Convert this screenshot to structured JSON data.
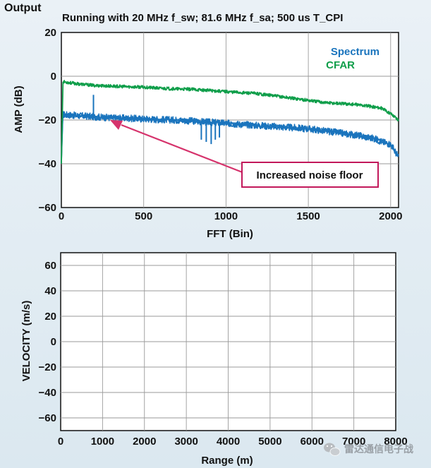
{
  "window_label": "Output",
  "chart_data": [
    {
      "type": "line",
      "title": "Running with 20 MHz f_sw; 81.6 MHz f_sa; 500 us T_CPI",
      "xlabel": "FFT (Bin)",
      "ylabel": "AMP (dB)",
      "xlim": [
        0,
        2048
      ],
      "ylim": [
        -60,
        20
      ],
      "xticks": [
        0,
        500,
        1000,
        1500,
        2000
      ],
      "yticks": [
        20,
        0,
        -20,
        -40,
        -60
      ],
      "xtick_labels": [
        "0",
        "500",
        "1000",
        "1500",
        "2000"
      ],
      "ytick_labels": [
        "20",
        "0",
        "−20",
        "−40",
        "−60"
      ],
      "grid": true,
      "legend": "top-right",
      "series": [
        {
          "name": "Spectrum",
          "color": "#1a74bd",
          "x": [
            0,
            10,
            100,
            200,
            300,
            400,
            500,
            600,
            700,
            800,
            900,
            1000,
            1100,
            1200,
            1300,
            1400,
            1500,
            1600,
            1700,
            1800,
            1900,
            1950,
            2000,
            2048
          ],
          "y": [
            -40,
            -17.5,
            -18,
            -18.5,
            -19,
            -19.2,
            -19.5,
            -19.8,
            -20,
            -20.5,
            -21,
            -21.5,
            -22,
            -22.5,
            -23,
            -23.5,
            -24,
            -25,
            -26,
            -27,
            -28.5,
            -30,
            -31,
            -37
          ],
          "spikes": [
            {
              "x": 195,
              "top": -8.5,
              "bottom": -18
            },
            {
              "x": 850,
              "top": -21,
              "bottom": -29
            },
            {
              "x": 880,
              "top": -21,
              "bottom": -30
            },
            {
              "x": 910,
              "top": -21,
              "bottom": -31
            },
            {
              "x": 935,
              "top": -21,
              "bottom": -29
            },
            {
              "x": 960,
              "top": -20,
              "bottom": -28
            }
          ]
        },
        {
          "name": "CFAR",
          "color": "#0f9e4a",
          "x": [
            0,
            10,
            100,
            200,
            300,
            400,
            500,
            600,
            700,
            800,
            900,
            1000,
            1100,
            1200,
            1300,
            1400,
            1500,
            1600,
            1700,
            1800,
            1900,
            1940,
            2000,
            2048
          ],
          "y": [
            -40,
            -2.5,
            -3.5,
            -4.2,
            -4.5,
            -4.8,
            -5,
            -5.5,
            -5.8,
            -6,
            -6.5,
            -7,
            -7.5,
            -8,
            -9,
            -10,
            -11,
            -12,
            -12.5,
            -13,
            -14,
            -14.5,
            -17,
            -20
          ]
        }
      ],
      "annotations": [
        {
          "text": "Increased noise floor",
          "points_to": {
            "x": 300,
            "y": -19
          }
        }
      ]
    },
    {
      "type": "scatter",
      "xlabel": "Range (m)",
      "ylabel": "VELOCITY (m/s)",
      "xlim": [
        0,
        8000
      ],
      "ylim": [
        -70,
        70
      ],
      "xticks": [
        0,
        1000,
        2000,
        3000,
        4000,
        5000,
        6000,
        7000,
        8000
      ],
      "yticks": [
        60,
        40,
        20,
        0,
        -20,
        -40,
        -60
      ],
      "xtick_labels": [
        "0",
        "1000",
        "2000",
        "3000",
        "4000",
        "5000",
        "6000",
        "7000",
        "8000"
      ],
      "ytick_labels": [
        "60",
        "40",
        "20",
        "0",
        "−20",
        "−40",
        "−60"
      ],
      "grid": true,
      "series": []
    }
  ],
  "watermark": {
    "text": "雷达通信电子战",
    "icon": "wechat-icon"
  }
}
